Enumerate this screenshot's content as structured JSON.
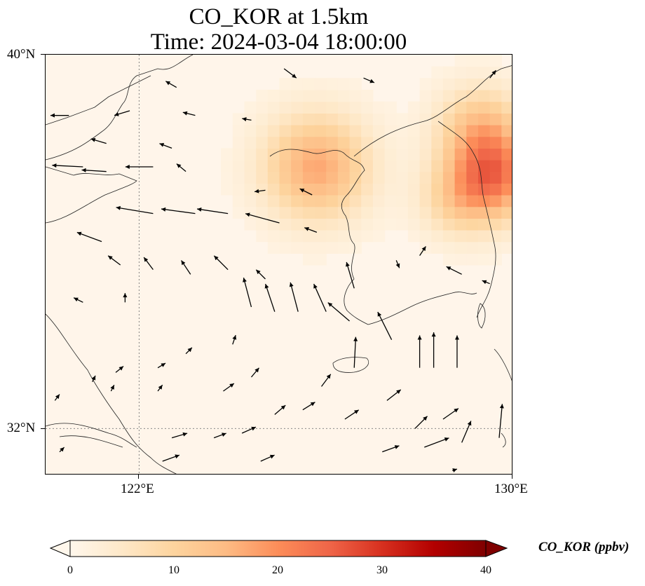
{
  "title": {
    "line1": "CO_KOR at 1.5km",
    "line2": "Time: 2024-03-04 18:00:00"
  },
  "axes": {
    "lat_ticks": [
      "40°N",
      "32°N"
    ],
    "lon_ticks": [
      "122°E",
      "130°E"
    ],
    "extent": {
      "lon_min": 120,
      "lon_max": 130,
      "lat_min": 31,
      "lat_max": 40
    },
    "gridlines": {
      "lon": [
        122
      ],
      "lat": [
        32
      ],
      "style": "dotted gray"
    }
  },
  "colorbar": {
    "label": "CO_KOR (ppbv)",
    "ticks": [
      "0",
      "10",
      "20",
      "30",
      "40"
    ],
    "min": 0,
    "max": 40,
    "extend": "both",
    "colormap": "OrRd",
    "colors": [
      "#fff7ec",
      "#fee8c8",
      "#fdd49e",
      "#fdbb84",
      "#fc8d59",
      "#ef6548",
      "#d7301f",
      "#b30000",
      "#7f0000"
    ]
  },
  "field": {
    "background_value_ppbv": 1,
    "hotspots": [
      {
        "lon": 125.8,
        "lat": 37.6,
        "value_ppbv": 16,
        "spread": 1.1
      },
      {
        "lon": 129.6,
        "lat": 37.4,
        "value_ppbv": 20,
        "spread": 0.9
      },
      {
        "lon": 129.3,
        "lat": 38.4,
        "value_ppbv": 12,
        "spread": 0.9
      },
      {
        "lon": 128.8,
        "lat": 36.9,
        "value_ppbv": 8,
        "spread": 0.8
      }
    ]
  },
  "wind_vectors": [
    {
      "lon": 120.5,
      "lat": 38.7,
      "u": -1.2,
      "v": 0
    },
    {
      "lon": 121.8,
      "lat": 38.8,
      "u": -1.0,
      "v": -0.3
    },
    {
      "lon": 123.2,
      "lat": 38.7,
      "u": -0.8,
      "v": 0.2
    },
    {
      "lon": 124.4,
      "lat": 38.6,
      "u": -0.6,
      "v": 0.1
    },
    {
      "lon": 125.1,
      "lat": 39.7,
      "u": 0.8,
      "v": -0.6
    },
    {
      "lon": 126.8,
      "lat": 39.5,
      "u": 0.7,
      "v": -0.3
    },
    {
      "lon": 129.5,
      "lat": 39.5,
      "u": 0.4,
      "v": 0.5
    },
    {
      "lon": 122.8,
      "lat": 39.3,
      "u": -0.7,
      "v": 0.4
    },
    {
      "lon": 121.3,
      "lat": 38.1,
      "u": -1.0,
      "v": 0.3
    },
    {
      "lon": 122.7,
      "lat": 38.0,
      "u": -0.8,
      "v": 0.3
    },
    {
      "lon": 120.8,
      "lat": 37.6,
      "u": -2.0,
      "v": 0.1
    },
    {
      "lon": 121.3,
      "lat": 37.5,
      "u": -1.6,
      "v": 0.1
    },
    {
      "lon": 122.3,
      "lat": 37.6,
      "u": -1.8,
      "v": 0
    },
    {
      "lon": 123.0,
      "lat": 37.5,
      "u": -0.6,
      "v": 0.5
    },
    {
      "lon": 124.7,
      "lat": 37.1,
      "u": -0.7,
      "v": -0.1
    },
    {
      "lon": 125.7,
      "lat": 37.0,
      "u": -0.8,
      "v": 0.4
    },
    {
      "lon": 122.3,
      "lat": 36.6,
      "u": -2.4,
      "v": 0.4
    },
    {
      "lon": 123.2,
      "lat": 36.6,
      "u": -2.2,
      "v": 0.3
    },
    {
      "lon": 123.9,
      "lat": 36.6,
      "u": -2.0,
      "v": 0.3
    },
    {
      "lon": 125.0,
      "lat": 36.4,
      "u": -2.2,
      "v": 0.6
    },
    {
      "lon": 125.8,
      "lat": 36.2,
      "u": -0.8,
      "v": 0.3
    },
    {
      "lon": 121.2,
      "lat": 36.0,
      "u": -1.6,
      "v": 0.6
    },
    {
      "lon": 121.6,
      "lat": 35.5,
      "u": -0.8,
      "v": 0.6
    },
    {
      "lon": 122.3,
      "lat": 35.4,
      "u": -0.6,
      "v": 0.8
    },
    {
      "lon": 123.1,
      "lat": 35.3,
      "u": -0.6,
      "v": 0.9
    },
    {
      "lon": 123.9,
      "lat": 35.4,
      "u": -0.9,
      "v": 0.9
    },
    {
      "lon": 124.7,
      "lat": 35.2,
      "u": -0.6,
      "v": 0.6
    },
    {
      "lon": 126.6,
      "lat": 35.0,
      "u": -0.5,
      "v": 1.7
    },
    {
      "lon": 127.5,
      "lat": 35.6,
      "u": 0.2,
      "v": -0.5
    },
    {
      "lon": 128.0,
      "lat": 35.7,
      "u": 0.4,
      "v": 0.6
    },
    {
      "lon": 128.9,
      "lat": 35.3,
      "u": -1.0,
      "v": 0.5
    },
    {
      "lon": 129.5,
      "lat": 35.1,
      "u": -0.5,
      "v": 0.2
    },
    {
      "lon": 120.8,
      "lat": 34.7,
      "u": -0.6,
      "v": 0.3
    },
    {
      "lon": 121.7,
      "lat": 34.7,
      "u": 0,
      "v": 0.6
    },
    {
      "lon": 124.4,
      "lat": 34.6,
      "u": -0.5,
      "v": 1.9
    },
    {
      "lon": 124.9,
      "lat": 34.5,
      "u": -0.6,
      "v": 1.8
    },
    {
      "lon": 125.4,
      "lat": 34.5,
      "u": -0.5,
      "v": 1.9
    },
    {
      "lon": 126.0,
      "lat": 34.5,
      "u": -0.8,
      "v": 1.8
    },
    {
      "lon": 126.5,
      "lat": 34.3,
      "u": -1.4,
      "v": 1.2
    },
    {
      "lon": 127.4,
      "lat": 33.9,
      "u": -0.9,
      "v": 1.8
    },
    {
      "lon": 124.0,
      "lat": 33.8,
      "u": 0.2,
      "v": 0.6
    },
    {
      "lon": 126.6,
      "lat": 33.3,
      "u": 0.1,
      "v": 2.0
    },
    {
      "lon": 128.0,
      "lat": 33.3,
      "u": 0,
      "v": 2.1
    },
    {
      "lon": 128.3,
      "lat": 33.3,
      "u": 0,
      "v": 2.3
    },
    {
      "lon": 128.8,
      "lat": 33.3,
      "u": 0,
      "v": 2.1
    },
    {
      "lon": 123.0,
      "lat": 33.6,
      "u": 0.4,
      "v": 0.4
    },
    {
      "lon": 121.5,
      "lat": 33.2,
      "u": 0.5,
      "v": 0.4
    },
    {
      "lon": 122.4,
      "lat": 33.3,
      "u": 0.5,
      "v": 0.3
    },
    {
      "lon": 121.0,
      "lat": 33.0,
      "u": 0.2,
      "v": 0.4
    },
    {
      "lon": 121.4,
      "lat": 32.8,
      "u": 0.2,
      "v": 0.4
    },
    {
      "lon": 122.4,
      "lat": 32.8,
      "u": 0.3,
      "v": 0.4
    },
    {
      "lon": 123.8,
      "lat": 32.8,
      "u": 0.7,
      "v": 0.5
    },
    {
      "lon": 124.4,
      "lat": 33.1,
      "u": 0.5,
      "v": 0.6
    },
    {
      "lon": 125.9,
      "lat": 32.9,
      "u": 0.6,
      "v": 0.8
    },
    {
      "lon": 127.3,
      "lat": 32.6,
      "u": 0.9,
      "v": 0.7
    },
    {
      "lon": 120.2,
      "lat": 32.6,
      "u": 0.3,
      "v": 0.4
    },
    {
      "lon": 124.9,
      "lat": 32.3,
      "u": 0.7,
      "v": 0.6
    },
    {
      "lon": 125.5,
      "lat": 32.4,
      "u": 0.8,
      "v": 0.5
    },
    {
      "lon": 126.4,
      "lat": 32.2,
      "u": 0.9,
      "v": 0.6
    },
    {
      "lon": 127.9,
      "lat": 32.0,
      "u": 0.8,
      "v": 0.8
    },
    {
      "lon": 128.5,
      "lat": 32.2,
      "u": 1.0,
      "v": 0.7
    },
    {
      "lon": 129.7,
      "lat": 31.8,
      "u": 0.2,
      "v": 2.2
    },
    {
      "lon": 120.3,
      "lat": 31.5,
      "u": 0.3,
      "v": 0.3
    },
    {
      "lon": 122.7,
      "lat": 31.8,
      "u": 1.0,
      "v": 0.3
    },
    {
      "lon": 123.6,
      "lat": 31.8,
      "u": 0.8,
      "v": 0.3
    },
    {
      "lon": 124.2,
      "lat": 31.9,
      "u": 0.9,
      "v": 0.4
    },
    {
      "lon": 127.2,
      "lat": 31.5,
      "u": 1.1,
      "v": 0.4
    },
    {
      "lon": 128.1,
      "lat": 31.6,
      "u": 1.6,
      "v": 0.6
    },
    {
      "lon": 128.9,
      "lat": 31.7,
      "u": 0.6,
      "v": 1.4
    },
    {
      "lon": 122.5,
      "lat": 31.3,
      "u": 1.1,
      "v": 0.4
    },
    {
      "lon": 124.6,
      "lat": 31.3,
      "u": 0.9,
      "v": 0.4
    },
    {
      "lon": 128.7,
      "lat": 31.1,
      "u": 0.3,
      "v": 0.1
    }
  ]
}
